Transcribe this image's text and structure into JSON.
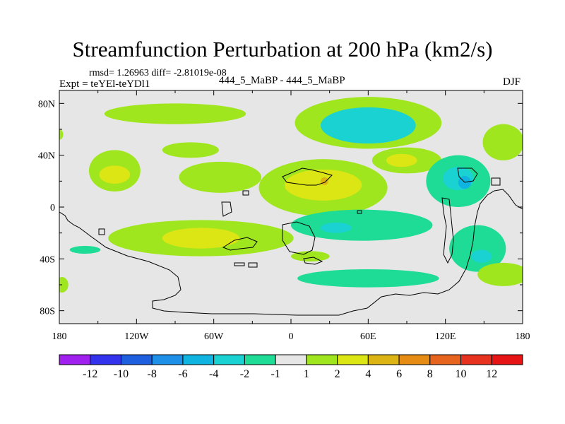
{
  "header": {
    "title": "Streamfunction Perturbation at 200 hPa (km2/s)",
    "stats": "rmsd= 1.26963 diff= -2.81019e-08",
    "expt": "Expt = teYEl-teYDl1",
    "case_name": "444_5_MaBP - 444_5_MaBP",
    "season": "DJF"
  },
  "chart_data": {
    "type": "heatmap",
    "title": "Streamfunction Perturbation at 200 hPa (km2/s)",
    "projection": "cylindrical-equidistant",
    "lon_range": [
      -180,
      180
    ],
    "lat_range": [
      -90,
      90
    ],
    "x_ticks": [
      {
        "value": -180,
        "label": "180"
      },
      {
        "value": -120,
        "label": "120W"
      },
      {
        "value": -60,
        "label": "60W"
      },
      {
        "value": 0,
        "label": "0"
      },
      {
        "value": 60,
        "label": "60E"
      },
      {
        "value": 120,
        "label": "120E"
      },
      {
        "value": 180,
        "label": "180"
      }
    ],
    "y_ticks": [
      {
        "value": 80,
        "label": "80N"
      },
      {
        "value": 40,
        "label": "40N"
      },
      {
        "value": 0,
        "label": "0"
      },
      {
        "value": -40,
        "label": "40S"
      },
      {
        "value": -80,
        "label": "80S"
      }
    ],
    "colorbar": {
      "levels": [
        "-12",
        "-10",
        "-8",
        "-6",
        "-4",
        "-2",
        "-1",
        "1",
        "2",
        "4",
        "6",
        "8",
        "10",
        "12"
      ],
      "colors": [
        "#a020f0",
        "#3333ee",
        "#1e5fe0",
        "#1e90e8",
        "#10b4e0",
        "#1ad2d2",
        "#1edc96",
        "#e6e6e6",
        "#a0e61e",
        "#dce614",
        "#dcb414",
        "#e68c14",
        "#e6641e",
        "#e6321e",
        "#e61414"
      ]
    },
    "anomalies": [
      {
        "lon": -90,
        "lat": 72,
        "rlon": 55,
        "rlat": 8,
        "level": 1
      },
      {
        "lon": -78,
        "lat": 44,
        "rlon": 22,
        "rlat": 6,
        "level": 1
      },
      {
        "lon": 60,
        "lat": 65,
        "rlon": 57,
        "rlat": 20,
        "level": 1
      },
      {
        "lon": 60,
        "lat": 63,
        "rlon": 37,
        "rlat": 14,
        "level": -2
      },
      {
        "lon": 165,
        "lat": 50,
        "rlon": 16,
        "rlat": 14,
        "level": 1
      },
      {
        "lon": -180,
        "lat": 56,
        "rlon": 3,
        "rlat": 4,
        "level": 1
      },
      {
        "lon": -137,
        "lat": 28,
        "rlon": 20,
        "rlat": 16,
        "level": 1
      },
      {
        "lon": -137,
        "lat": 25,
        "rlon": 12,
        "rlat": 7,
        "level": 2
      },
      {
        "lon": -55,
        "lat": 23,
        "rlon": 32,
        "rlat": 12,
        "level": 1
      },
      {
        "lon": 25,
        "lat": 15,
        "rlon": 50,
        "rlat": 22,
        "level": 1
      },
      {
        "lon": 25,
        "lat": 17,
        "rlon": 30,
        "rlat": 12,
        "level": 2
      },
      {
        "lon": 26,
        "lat": 20,
        "rlon": 3,
        "rlat": 3,
        "level": 4
      },
      {
        "lon": 90,
        "lat": 36,
        "rlon": 27,
        "rlat": 10,
        "level": 1
      },
      {
        "lon": 86,
        "lat": 36,
        "rlon": 12,
        "rlat": 5,
        "level": 2
      },
      {
        "lon": 130,
        "lat": 20,
        "rlon": 25,
        "rlat": 20,
        "level": -1
      },
      {
        "lon": 130,
        "lat": 22,
        "rlon": 12,
        "rlat": 9,
        "level": -2
      },
      {
        "lon": 135,
        "lat": 19,
        "rlon": 5,
        "rlat": 5,
        "level": -4
      },
      {
        "lon": 55,
        "lat": -14,
        "rlon": 55,
        "rlat": 12,
        "level": -1
      },
      {
        "lon": 35,
        "lat": -16,
        "rlon": 12,
        "rlat": 4,
        "level": -2
      },
      {
        "lon": -70,
        "lat": -24,
        "rlon": 72,
        "rlat": 14,
        "level": 1
      },
      {
        "lon": -70,
        "lat": -24,
        "rlon": 30,
        "rlat": 8,
        "level": 2
      },
      {
        "lon": -160,
        "lat": -33,
        "rlon": 12,
        "rlat": 3,
        "level": -1
      },
      {
        "lon": 15,
        "lat": -38,
        "rlon": 15,
        "rlat": 4,
        "level": 1
      },
      {
        "lon": 145,
        "lat": -32,
        "rlon": 22,
        "rlat": 18,
        "level": -1
      },
      {
        "lon": 148,
        "lat": -38,
        "rlon": 8,
        "rlat": 5,
        "level": -2
      },
      {
        "lon": 165,
        "lat": -52,
        "rlon": 20,
        "rlat": 9,
        "level": 1
      },
      {
        "lon": 60,
        "lat": -55,
        "rlon": 55,
        "rlat": 7,
        "level": -1
      },
      {
        "lon": -178,
        "lat": -60,
        "rlon": 5,
        "rlat": 6,
        "level": 1
      }
    ]
  }
}
